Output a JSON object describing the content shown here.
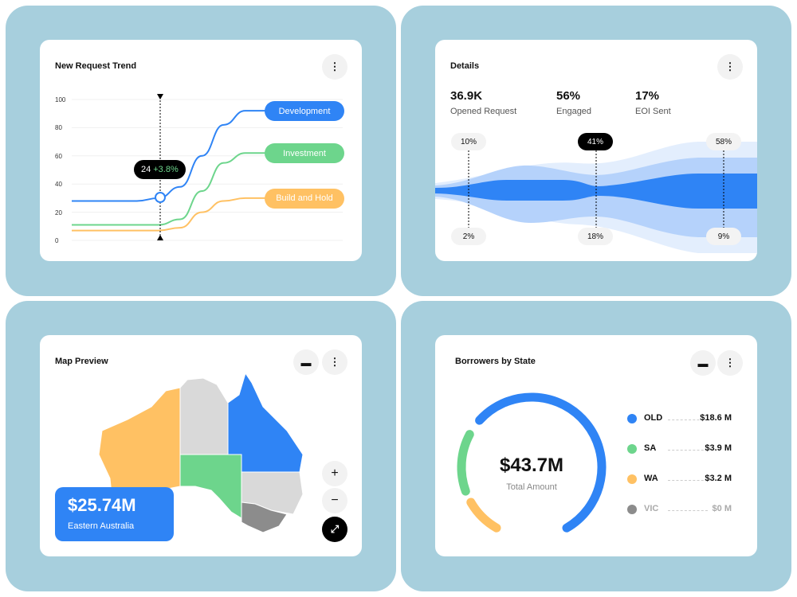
{
  "trend": {
    "title": "New Request Trend",
    "menu_icon": "more-vertical-icon",
    "y_ticks": [
      "100",
      "80",
      "60",
      "40",
      "20",
      "0"
    ],
    "tooltip": {
      "value": "24",
      "change": "+3.8%"
    },
    "chart_data": {
      "type": "line",
      "ylim": [
        0,
        100
      ],
      "grid": true,
      "series": [
        {
          "name": "Development",
          "color": "#2f84f5",
          "values": [
            28,
            28,
            28,
            28,
            30,
            38,
            60,
            82,
            92,
            92
          ]
        },
        {
          "name": "Investment",
          "color": "#6dd58c",
          "values": [
            11,
            11,
            11,
            11,
            11,
            15,
            35,
            55,
            62,
            62
          ]
        },
        {
          "name": "Build and Hold",
          "color": "#ffc163",
          "values": [
            7,
            7,
            7,
            7,
            7,
            9,
            20,
            28,
            30,
            30
          ]
        }
      ]
    }
  },
  "details": {
    "title": "Details",
    "stats": [
      {
        "value": "36.9K",
        "label": "Opened Request"
      },
      {
        "value": "56%",
        "label": "Engaged"
      },
      {
        "value": "17%",
        "label": "EOI Sent"
      }
    ],
    "top_markers": [
      "10%",
      "41%",
      "58%"
    ],
    "bottom_markers": [
      "2%",
      "18%",
      "9%"
    ],
    "colors": {
      "dark": "#2f84f5",
      "mid": "#8fbaf9",
      "light": "#d6e6fd"
    }
  },
  "map": {
    "title": "Map Preview",
    "amount": "$25.74M",
    "region": "Eastern Australia",
    "zoom_in": "+",
    "zoom_out": "−",
    "colors": {
      "WA": "#ffc163",
      "SA": "#6dd58c",
      "QLD": "#2f84f5",
      "NT": "#d9d9d9",
      "NSW": "#d9d9d9",
      "VIC": "#8c8c8c"
    }
  },
  "borrowers": {
    "title": "Borrowers by State",
    "total": "$43.7M",
    "total_label": "Total Amount",
    "items": [
      {
        "state": "OLD",
        "value": "$18.6 M",
        "color": "#2f84f5"
      },
      {
        "state": "SA",
        "value": "$3.9 M",
        "color": "#6dd58c"
      },
      {
        "state": "WA",
        "value": "$3.2 M",
        "color": "#ffc163"
      },
      {
        "state": "VIC",
        "value": "$0 M",
        "color": "#8c8c8c"
      }
    ]
  }
}
